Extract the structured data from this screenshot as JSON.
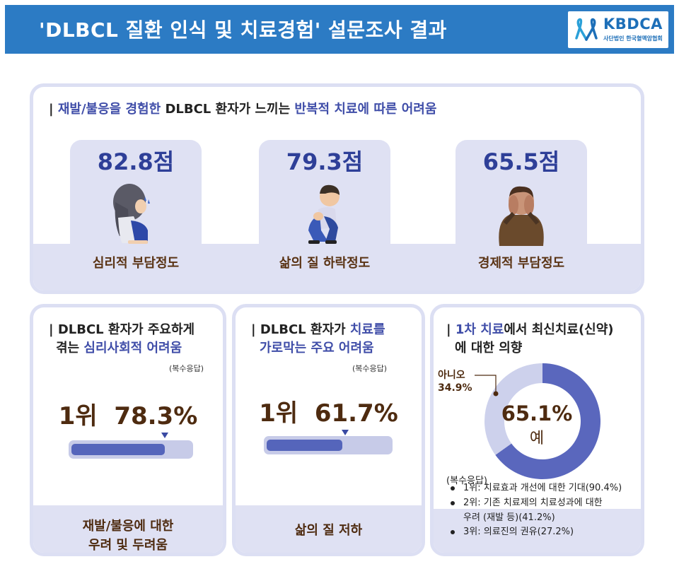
{
  "header": {
    "title": "'DLBCL 질환 인식 및 치료경험' 설문조사 결과",
    "logo_name": "KBDCA",
    "logo_sub": "사단법인 한국혈액암협회",
    "bg_color": "#2c7bc4"
  },
  "top": {
    "heading_accent1": "재발/불응을 경험한",
    "heading_plain": " DLBCL 환자가 느끼는 ",
    "heading_accent2": "반복적 치료에 따른 어려움",
    "cards": [
      {
        "score": "82.8점",
        "label": "심리적 부담정도",
        "icon": "crying-woman-icon"
      },
      {
        "score": "79.3점",
        "label": "삶의 질 하락정도",
        "icon": "sitting-man-icon"
      },
      {
        "score": "65.5점",
        "label": "경제적 부담정도",
        "icon": "stressed-man-icon"
      }
    ]
  },
  "psych": {
    "heading_line1": "DLBCL 환자가 주요하게",
    "heading_line2_plain": "겪는 ",
    "heading_line2_accent": "심리사회적 어려움",
    "multi": "(복수응답)",
    "rank": "1위",
    "percent": "78.3%",
    "progress": 0.783,
    "band_line1": "재발/불응에 대한",
    "band_line2": "우려 및 두려움"
  },
  "barrier": {
    "heading_line1_plain": "DLBCL 환자가 ",
    "heading_line1_accent": "치료를",
    "heading_line2": "가로막는 주요 어려움",
    "multi": "(복수응답)",
    "rank": "1위",
    "percent": "61.7%",
    "progress": 0.617,
    "band_line1": "삶의 질 저하"
  },
  "intent": {
    "heading_line1_accent": "1차 치료",
    "heading_line1_plain": "에서 최신치료(신약)",
    "heading_line2": "에 대한 의향",
    "no_label": "아니오",
    "no_percent": "34.9%",
    "yes_percent": "65.1%",
    "yes_label": "예",
    "yes_value": 65.1,
    "no_value": 34.9,
    "yes_color": "#5a67bd",
    "no_color": "#cdd1ec",
    "multi": "(복수응답)",
    "reasons": [
      {
        "line1": "1위: 치료효과 개선에 대한 기대(90.4%)"
      },
      {
        "line1": "2위: 기존 치료제의 치료성과에 대한",
        "line2": "우려 (재발 등)(41.2%)"
      },
      {
        "line1": "3위: 의료진의 권유(27.2%)"
      }
    ]
  }
}
